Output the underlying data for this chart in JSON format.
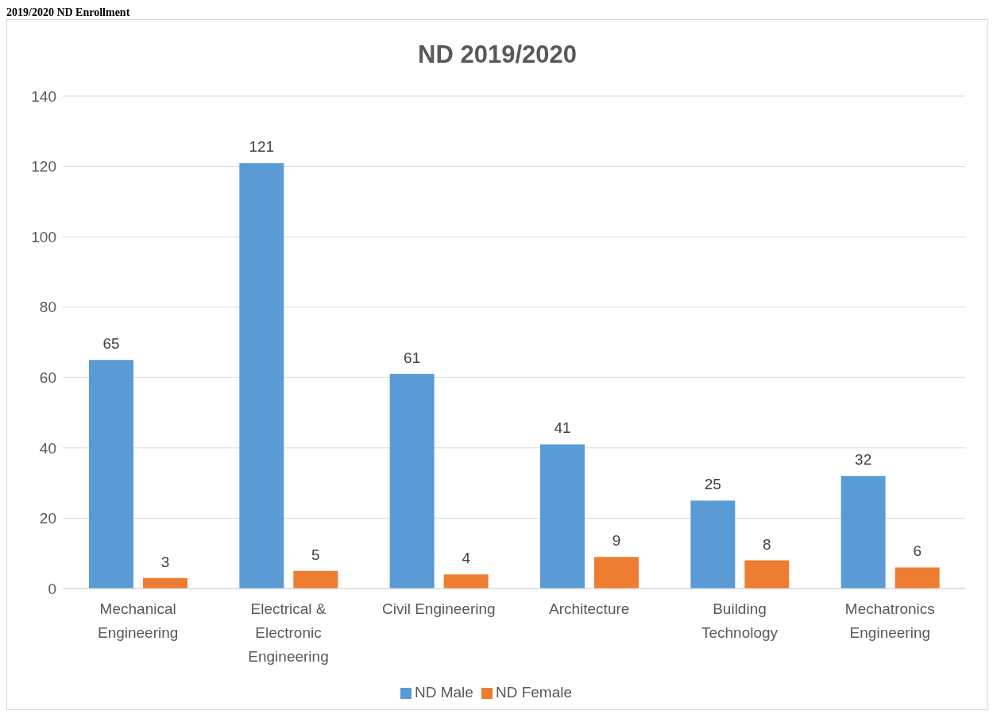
{
  "chart_data": {
    "type": "bar",
    "title": "ND 2019/2020",
    "annotations": [
      "2019/2020 ND Enrollment"
    ],
    "categories": [
      "Mechanical Engineering",
      "Electrical & Electronic Engineering",
      "Civil Engineering",
      "Architecture",
      "Building Technology",
      "Mechatronics Engineering"
    ],
    "series": [
      {
        "name": "ND Male",
        "color": "#5b9bd5",
        "values": [
          65,
          121,
          61,
          41,
          25,
          32
        ]
      },
      {
        "name": "ND Female",
        "color": "#ed7d31",
        "values": [
          3,
          5,
          4,
          9,
          8,
          6
        ]
      }
    ],
    "ylim": [
      0,
      140
    ],
    "yticks": [
      0,
      20,
      40,
      60,
      80,
      100,
      120,
      140
    ],
    "grid": "y",
    "legend": "bottom",
    "data_labels": true
  }
}
